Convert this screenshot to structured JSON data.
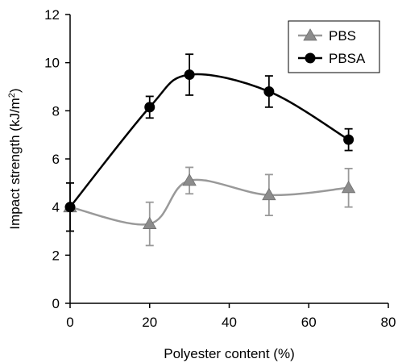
{
  "chart_data": {
    "type": "line",
    "xlabel": "Polyester content  (%)",
    "ylabel_main": "Impact strength  (kJ/m",
    "ylabel_sup": "2",
    "ylabel_close": ")",
    "xlim": [
      0,
      80
    ],
    "ylim": [
      0,
      12
    ],
    "xticks": [
      0,
      20,
      40,
      60,
      80
    ],
    "yticks": [
      0,
      2,
      4,
      6,
      8,
      10,
      12
    ],
    "grid": false,
    "legend_position": "top-right",
    "series": [
      {
        "name": "PBS",
        "marker": "triangle",
        "color": "#999999",
        "marker_color": "#8c8c8c",
        "x": [
          0,
          20,
          30,
          50,
          70
        ],
        "y": [
          4.0,
          3.3,
          5.1,
          4.5,
          4.8
        ],
        "err": [
          1.0,
          0.9,
          0.55,
          0.85,
          0.8
        ]
      },
      {
        "name": "PBSA",
        "marker": "circle",
        "color": "#000000",
        "marker_color": "#000000",
        "x": [
          0,
          20,
          30,
          50,
          70
        ],
        "y": [
          4.0,
          8.15,
          9.5,
          8.8,
          6.8
        ],
        "err": [
          1.0,
          0.45,
          0.85,
          0.65,
          0.45
        ]
      }
    ]
  }
}
